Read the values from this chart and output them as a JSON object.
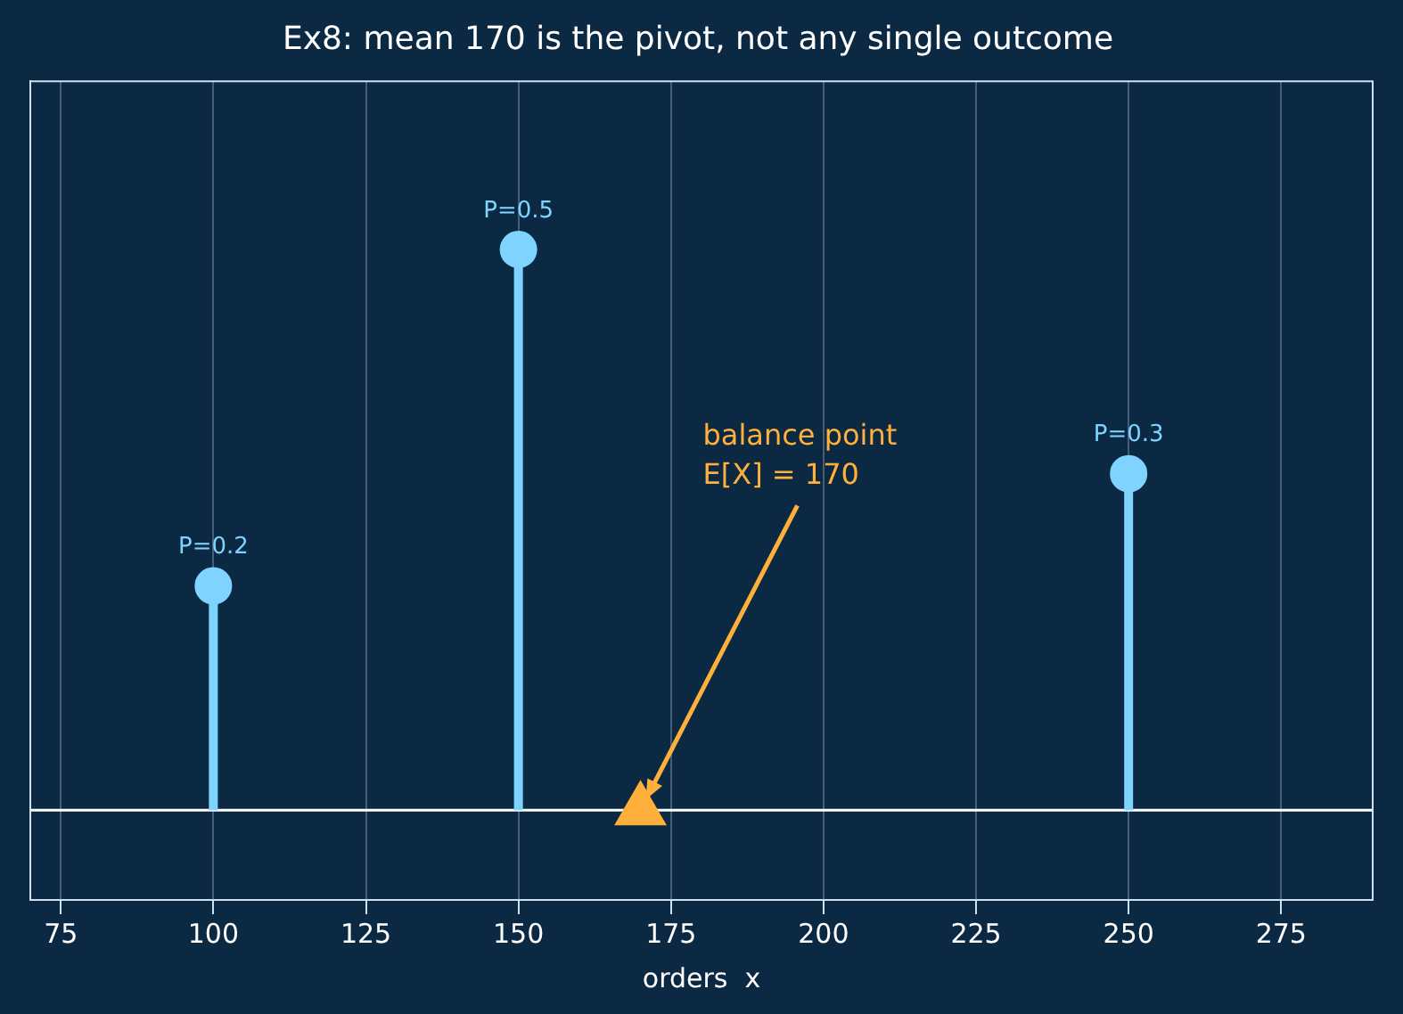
{
  "chart_data": {
    "type": "lollipop",
    "title": "Ex8: mean 170 is the pivot, not any single outcome",
    "xlabel": "orders  x",
    "x": [
      100,
      150,
      250
    ],
    "series": [
      {
        "color": "#7fd4ff",
        "marker": "circle",
        "values": [
          0.2,
          0.5,
          0.3
        ],
        "value_labels": [
          "P=0.2",
          "P=0.5",
          "P=0.3"
        ]
      },
      {
        "type": "scatter",
        "x": [
          170
        ],
        "values": [
          0
        ],
        "color": "#ffb03b",
        "marker": "triangle"
      }
    ],
    "xlim": [
      70,
      290
    ],
    "xticks": [
      75,
      100,
      125,
      150,
      175,
      200,
      225,
      250,
      275
    ],
    "ylim": [
      -0.08,
      0.65
    ],
    "tick_labels": "x",
    "grid": "x",
    "legend": false,
    "ref_lines": [
      {
        "axis": "y",
        "value": 0,
        "color": "#ffffff"
      }
    ],
    "annotations": [
      "balance point\nE[X] = 170"
    ]
  }
}
